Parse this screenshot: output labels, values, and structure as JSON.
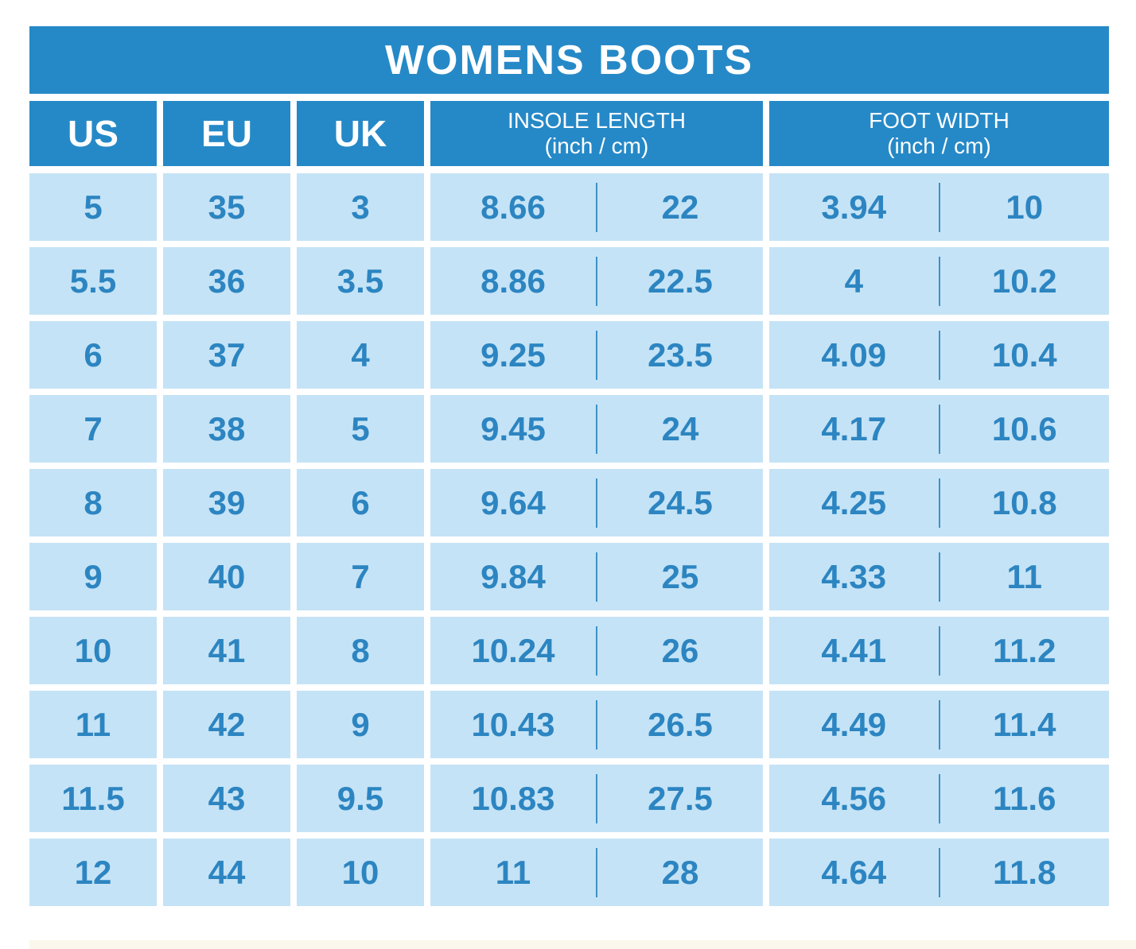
{
  "title": "WOMENS BOOTS",
  "header": {
    "us": "US",
    "eu": "EU",
    "uk": "UK",
    "insole_label": "INSOLE LENGTH",
    "insole_sub": "(inch / cm)",
    "width_label": "FOOT WIDTH",
    "width_sub": "(inch / cm)"
  },
  "colors": {
    "header_bg": "#2689C7",
    "cell_bg": "#C5E3F6",
    "cell_text": "#2C85C1",
    "divider": "#3B92C9",
    "title_text": "#FFFFFF"
  },
  "chart_data": {
    "type": "table",
    "title": "WOMENS BOOTS",
    "columns": [
      "US",
      "EU",
      "UK",
      "INSOLE LENGTH (inch / cm)",
      "FOOT WIDTH (inch / cm)"
    ],
    "rows": [
      {
        "us": "5",
        "eu": "35",
        "uk": "3",
        "insole_inch": "8.66",
        "insole_cm": "22",
        "width_inch": "3.94",
        "width_cm": "10"
      },
      {
        "us": "5.5",
        "eu": "36",
        "uk": "3.5",
        "insole_inch": "8.86",
        "insole_cm": "22.5",
        "width_inch": "4",
        "width_cm": "10.2"
      },
      {
        "us": "6",
        "eu": "37",
        "uk": "4",
        "insole_inch": "9.25",
        "insole_cm": "23.5",
        "width_inch": "4.09",
        "width_cm": "10.4"
      },
      {
        "us": "7",
        "eu": "38",
        "uk": "5",
        "insole_inch": "9.45",
        "insole_cm": "24",
        "width_inch": "4.17",
        "width_cm": "10.6"
      },
      {
        "us": "8",
        "eu": "39",
        "uk": "6",
        "insole_inch": "9.64",
        "insole_cm": "24.5",
        "width_inch": "4.25",
        "width_cm": "10.8"
      },
      {
        "us": "9",
        "eu": "40",
        "uk": "7",
        "insole_inch": "9.84",
        "insole_cm": "25",
        "width_inch": "4.33",
        "width_cm": "11"
      },
      {
        "us": "10",
        "eu": "41",
        "uk": "8",
        "insole_inch": "10.24",
        "insole_cm": "26",
        "width_inch": "4.41",
        "width_cm": "11.2"
      },
      {
        "us": "11",
        "eu": "42",
        "uk": "9",
        "insole_inch": "10.43",
        "insole_cm": "26.5",
        "width_inch": "4.49",
        "width_cm": "11.4"
      },
      {
        "us": "11.5",
        "eu": "43",
        "uk": "9.5",
        "insole_inch": "10.83",
        "insole_cm": "27.5",
        "width_inch": "4.56",
        "width_cm": "11.6"
      },
      {
        "us": "12",
        "eu": "44",
        "uk": "10",
        "insole_inch": "11",
        "insole_cm": "28",
        "width_inch": "4.64",
        "width_cm": "11.8"
      }
    ]
  }
}
